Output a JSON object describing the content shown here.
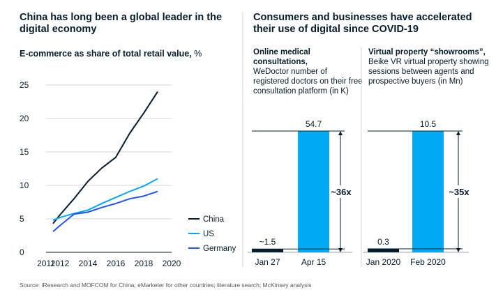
{
  "left": {
    "title": "China has long been a global leader in the digital economy",
    "subtitle": "E-commerce as share of total retail value,",
    "unit": "%"
  },
  "right": {
    "title": "Consumers and businesses have accelerated their use of digital since COVID-19",
    "panel1": {
      "title_bold": "Online medical consultations,",
      "description": "WeDoctor number of registered doctors on their free consultation platform (in K)"
    },
    "panel2": {
      "title_bold": "Virtual property “showrooms”,",
      "description": "Beike VR virtual property showing sessions between agents and prospective buyers (in Mn)"
    }
  },
  "source": "Source: iResearch and MOFCOM for China; eMarketer for other countries; literature search; McKinsey analysis",
  "chart_data": [
    {
      "type": "line",
      "title": "E-commerce as share of total retail value, %",
      "x_ticks": [
        "2011",
        "2012",
        "2014",
        "2016",
        "2018",
        "2020"
      ],
      "y_ticks": [
        "0",
        "5",
        "10",
        "15",
        "20",
        "25"
      ],
      "xlim": [
        2011,
        2020
      ],
      "ylim": [
        0,
        25
      ],
      "grid": true,
      "legend_position": "right",
      "series": [
        {
          "name": "China",
          "color": "#051c2c",
          "x": [
            2011.5,
            2012,
            2013,
            2014,
            2015,
            2016,
            2017,
            2018,
            2019
          ],
          "y": [
            4.3,
            5.6,
            8.0,
            10.6,
            12.6,
            14.2,
            17.8,
            20.8,
            24.0
          ]
        },
        {
          "name": "US",
          "color": "#00a9f4",
          "x": [
            2011.5,
            2012,
            2013,
            2014,
            2015,
            2016,
            2017,
            2018,
            2019
          ],
          "y": [
            4.8,
            5.2,
            5.8,
            6.3,
            7.3,
            8.2,
            9.1,
            9.9,
            11.0
          ]
        },
        {
          "name": "Germany",
          "color": "#2251ff",
          "x": [
            2011.5,
            2012,
            2013,
            2014,
            2015,
            2016,
            2017,
            2018,
            2019
          ],
          "y": [
            3.1,
            4.0,
            5.7,
            6.0,
            6.7,
            7.3,
            8.0,
            8.4,
            9.1
          ]
        }
      ]
    },
    {
      "type": "bar",
      "categories": [
        "Jan 27",
        "Apr 15"
      ],
      "values": [
        1.5,
        54.7
      ],
      "value_labels": [
        "~1.5",
        "54.7"
      ],
      "bar_colors": [
        "#051c2c",
        "#00a9f4"
      ],
      "multiplier_label": "~36x"
    },
    {
      "type": "bar",
      "categories": [
        "Jan 2020",
        "Feb 2020"
      ],
      "values": [
        0.3,
        10.5
      ],
      "value_labels": [
        "0.3",
        "10.5"
      ],
      "bar_colors": [
        "#051c2c",
        "#00a9f4"
      ],
      "multiplier_label": "~35x"
    }
  ]
}
